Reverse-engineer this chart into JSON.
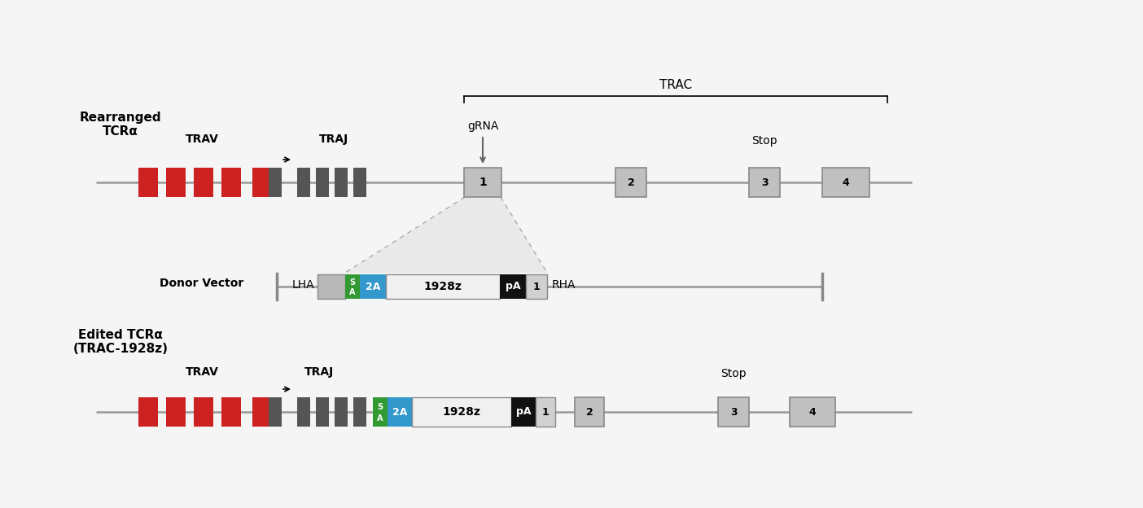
{
  "bg_color": "#f5f5f5",
  "line_color": "#999999",
  "red_color": "#cc2222",
  "dark_gray": "#555555",
  "light_gray": "#c0c0c0",
  "green_color": "#339933",
  "blue_color": "#3399cc",
  "black_color": "#111111",
  "box_gray": "#c0c0c0",
  "title_top": "Rearranged\nTCRα",
  "title_bottom": "Edited TCRα\n(TRAC-1928z)",
  "donor_label": "Donor Vector",
  "trac_label": "TRAC",
  "grna_label": "gRNA",
  "stop_label": "Stop",
  "lha_label": "LHA",
  "rha_label": "RHA",
  "trav_label": "TRAV",
  "traj_label": "TRAJ",
  "figw": 14.04,
  "figh": 6.24,
  "dpi": 100
}
